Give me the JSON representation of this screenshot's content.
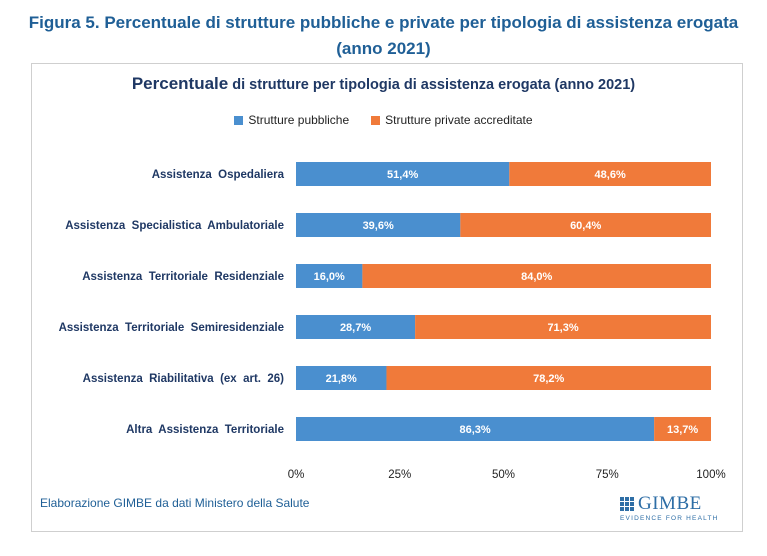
{
  "figure": {
    "title_line1": "Figura 5. Percentuale di strutture pubbliche e private per tipologia di assistenza erogata",
    "title_line2": "(anno 2021)"
  },
  "chart_title": {
    "lead": "Percentuale",
    "rest": " di strutture per tipologia di assistenza erogata (anno 2021)"
  },
  "legend": [
    {
      "label": "Strutture pubbliche",
      "color": "#4a8fcf"
    },
    {
      "label": "Strutture private accreditate",
      "color": "#f07a3a"
    }
  ],
  "chart_data": {
    "type": "bar",
    "orientation": "horizontal",
    "stacked": true,
    "categories": [
      "Assistenza  Ospedaliera",
      "Assistenza  Specialistica  Ambulatoriale",
      "Assistenza  Territoriale  Residenziale",
      "Assistenza  Territoriale  Semiresidenziale",
      "Assistenza  Riabilitativa  (ex  art.  26)",
      "Altra  Assistenza  Territoriale"
    ],
    "series": [
      {
        "name": "Strutture pubbliche",
        "color": "#4a8fcf",
        "values": [
          51.4,
          39.6,
          16.0,
          28.7,
          21.8,
          86.3
        ],
        "labels": [
          "51,4%",
          "39,6%",
          "16,0%",
          "28,7%",
          "21,8%",
          "86,3%"
        ]
      },
      {
        "name": "Strutture private accreditate",
        "color": "#f07a3a",
        "values": [
          48.6,
          60.4,
          84.0,
          71.3,
          78.2,
          13.7
        ],
        "labels": [
          "48,6%",
          "60,4%",
          "84,0%",
          "71,3%",
          "78,2%",
          "13,7%"
        ]
      }
    ],
    "xlim": [
      0,
      100
    ],
    "xticks": [
      0,
      25,
      50,
      75,
      100
    ],
    "xtick_labels": [
      "0%",
      "25%",
      "50%",
      "75%",
      "100%"
    ],
    "legend_position": "top"
  },
  "footer": {
    "source": "Elaborazione GIMBE da dati Ministero della Salute",
    "logo_word": "GIMBE",
    "logo_tagline": "EVIDENCE FOR HEALTH"
  }
}
